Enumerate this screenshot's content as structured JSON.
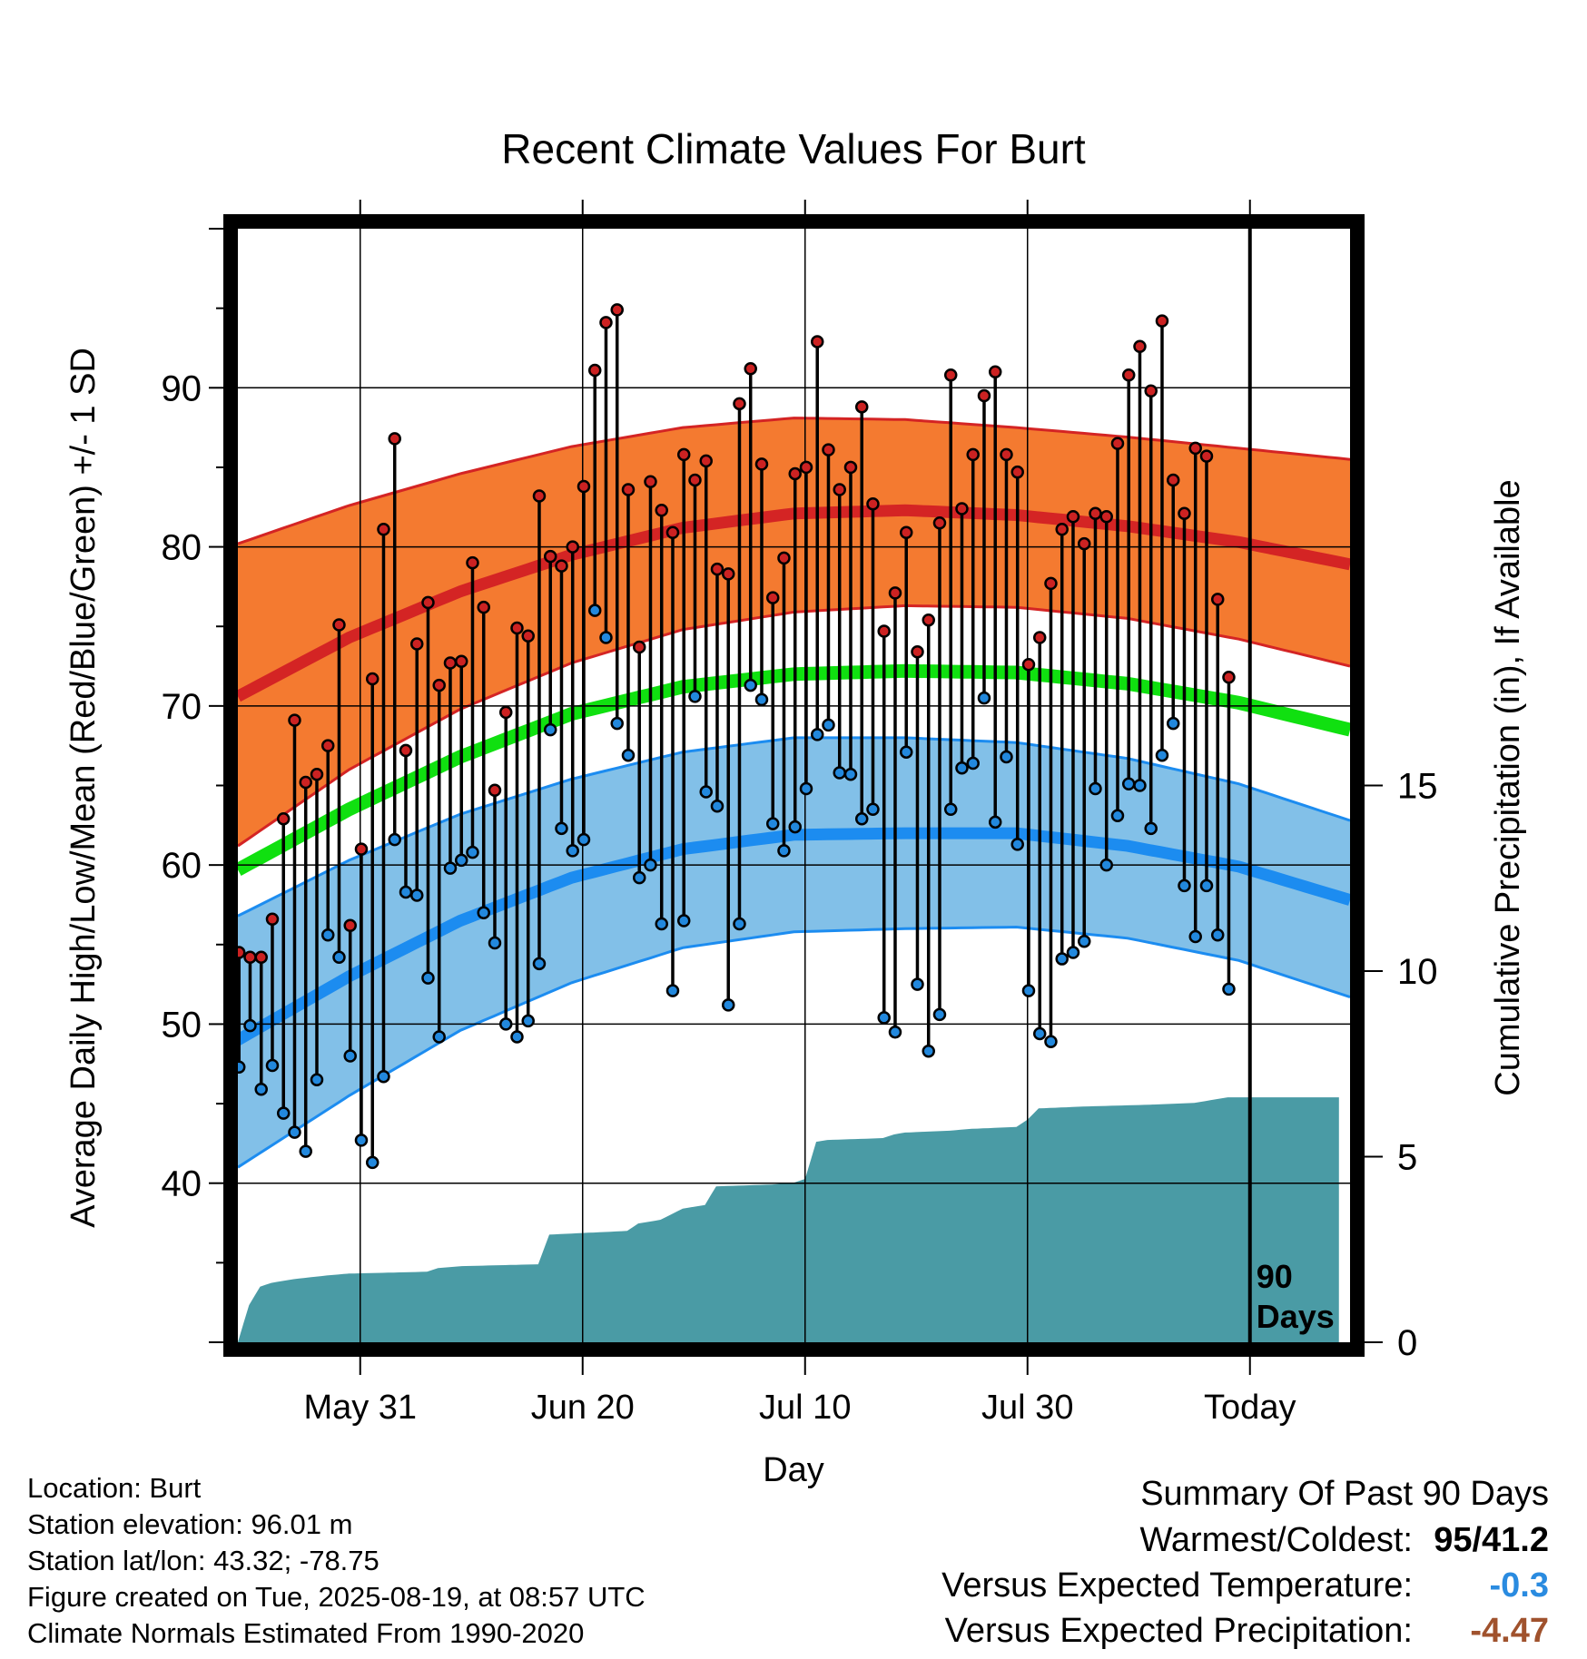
{
  "chart_data": {
    "type": "line",
    "title": "Recent Climate Values For Burt",
    "xlabel": "Day",
    "ylabel": "Average Daily High/Low/Mean (Red/Blue/Green) +/- 1 SD",
    "y2label": "Cumulative Precipitation (in), If Available",
    "ylim": [
      30,
      100
    ],
    "y2lim": [
      0,
      30
    ],
    "y_ticks": [
      40,
      50,
      60,
      70,
      80,
      90
    ],
    "y2_ticks": [
      0,
      5,
      10,
      15
    ],
    "x_ticks": [
      {
        "day": 11,
        "label": "May 31"
      },
      {
        "day": 31,
        "label": "Jun 20"
      },
      {
        "day": 51,
        "label": "Jul 10"
      },
      {
        "day": 71,
        "label": "Jul 30"
      },
      {
        "day": 91,
        "label": "Today"
      }
    ],
    "today_label": "90 Days",
    "grid": true,
    "colors": {
      "high_band": "#f47a30",
      "high_line": "#d42424",
      "low_band": "#82c0e8",
      "low_line": "#1c8cf0",
      "mean_line": "#10e010",
      "precip": "#4a9ba5",
      "high_point": "#cc2222",
      "low_point": "#2288dd"
    },
    "normals": {
      "days": [
        0,
        10,
        20,
        30,
        40,
        50,
        60,
        70,
        80,
        90,
        100
      ],
      "high_plus_sd": [
        80.2,
        82.6,
        84.6,
        86.3,
        87.5,
        88.1,
        88.0,
        87.5,
        86.9,
        86.2,
        85.5
      ],
      "high_mean": [
        70.6,
        74.3,
        77.2,
        79.5,
        81.2,
        82.1,
        82.3,
        82.0,
        81.3,
        80.3,
        78.9
      ],
      "high_minus_sd": [
        61.2,
        66.0,
        69.8,
        72.7,
        74.8,
        75.9,
        76.3,
        76.2,
        75.5,
        74.2,
        72.5
      ],
      "mean": [
        59.7,
        63.5,
        66.8,
        69.5,
        71.2,
        72.0,
        72.2,
        72.1,
        71.4,
        70.2,
        68.5
      ],
      "low_plus_sd": [
        56.8,
        60.3,
        63.2,
        65.4,
        67.1,
        68.0,
        68.0,
        67.7,
        66.7,
        65.1,
        62.8
      ],
      "low_mean": [
        49.0,
        53.0,
        56.5,
        59.2,
        61.0,
        61.9,
        62.0,
        62.0,
        61.2,
        59.9,
        57.8
      ],
      "low_minus_sd": [
        41.0,
        45.5,
        49.6,
        52.6,
        54.8,
        55.8,
        56.0,
        56.1,
        55.4,
        54.0,
        51.7
      ]
    },
    "series": [
      {
        "name": "High",
        "start_day": 0,
        "values": [
          54.5,
          54.2,
          54.2,
          56.6,
          62.9,
          69.1,
          65.2,
          65.7,
          67.5,
          75.1,
          56.2,
          61.0,
          71.7,
          81.1,
          86.8,
          67.2,
          73.9,
          76.5,
          71.3,
          72.7,
          72.8,
          79.0,
          76.2,
          64.7,
          69.6,
          74.9,
          74.4,
          83.2,
          79.4,
          78.8,
          80.0,
          83.8,
          91.1,
          94.1,
          94.9,
          83.6,
          73.7,
          84.1,
          82.3,
          80.9,
          85.8,
          84.2,
          85.4,
          78.6,
          78.3,
          89.0,
          91.2,
          85.2,
          76.8,
          79.3,
          84.6,
          85.0,
          92.9,
          86.1,
          83.6,
          85.0,
          88.8,
          82.7,
          74.7,
          77.1,
          80.9,
          73.4,
          75.4,
          81.5,
          90.8,
          82.4,
          85.8,
          89.5,
          91.0,
          85.8,
          84.7,
          72.6,
          74.3,
          77.7,
          81.1,
          81.9,
          80.2,
          82.1,
          81.9,
          86.5,
          90.8,
          92.6,
          89.8,
          94.2,
          84.2,
          82.1,
          86.2,
          85.7,
          76.7,
          71.8
        ]
      },
      {
        "name": "Low",
        "start_day": 0,
        "values": [
          47.3,
          49.9,
          45.9,
          47.4,
          44.4,
          43.2,
          42.0,
          46.5,
          55.6,
          54.2,
          48.0,
          42.7,
          41.3,
          46.7,
          61.6,
          58.3,
          58.1,
          52.9,
          49.2,
          59.8,
          60.3,
          60.8,
          57.0,
          55.1,
          50.0,
          49.2,
          50.2,
          53.8,
          68.5,
          62.3,
          60.9,
          61.6,
          76.0,
          74.3,
          68.9,
          66.9,
          59.2,
          60.0,
          56.3,
          52.1,
          56.5,
          70.6,
          64.6,
          63.7,
          51.2,
          56.3,
          71.3,
          70.4,
          62.6,
          60.9,
          62.4,
          64.8,
          68.2,
          68.8,
          65.8,
          65.7,
          62.9,
          63.5,
          50.4,
          49.5,
          67.1,
          52.5,
          48.3,
          50.6,
          63.5,
          66.1,
          66.4,
          70.5,
          62.7,
          66.8,
          61.3,
          52.1,
          49.4,
          48.9,
          54.1,
          54.5,
          55.2,
          64.8,
          60.0,
          63.1,
          65.1,
          65.0,
          62.3,
          66.9,
          68.9,
          58.7,
          55.5,
          58.7,
          55.6,
          52.2
        ]
      }
    ],
    "precip": {
      "days": [
        0,
        1,
        2,
        3,
        5,
        8,
        10,
        17,
        18,
        20,
        27,
        28,
        35,
        36,
        38,
        40,
        42,
        43,
        48,
        50,
        51,
        52,
        53,
        58,
        59,
        60,
        64,
        66,
        70,
        71,
        72,
        76,
        82,
        86,
        89,
        99
      ],
      "values": [
        0.0,
        1.0,
        1.5,
        1.6,
        1.7,
        1.8,
        1.85,
        1.9,
        2.0,
        2.05,
        2.1,
        2.9,
        3.0,
        3.2,
        3.3,
        3.6,
        3.7,
        4.2,
        4.25,
        4.3,
        4.4,
        5.4,
        5.45,
        5.5,
        5.6,
        5.65,
        5.7,
        5.75,
        5.8,
        6.0,
        6.3,
        6.35,
        6.4,
        6.45,
        6.6,
        6.6
      ]
    }
  },
  "footer": {
    "location": "Location: Burt",
    "elevation": "Station elevation: 96.01 m",
    "latlon": "Station lat/lon: 43.32; -78.75",
    "created": "Figure created on Tue, 2025-08-19, at 08:57 UTC",
    "normals": "Climate Normals Estimated From 1990-2020"
  },
  "summary": {
    "title": "Summary Of Past 90 Days",
    "warm_label": "Warmest/Coldest:",
    "warm_value": "95/41.2",
    "temp_label": "Versus Expected Temperature:",
    "temp_value": "-0.3",
    "temp_color": "#2a8be0",
    "precip_label": "Versus Expected Precipitation:",
    "precip_value": "-4.47",
    "precip_color": "#a0522d"
  }
}
